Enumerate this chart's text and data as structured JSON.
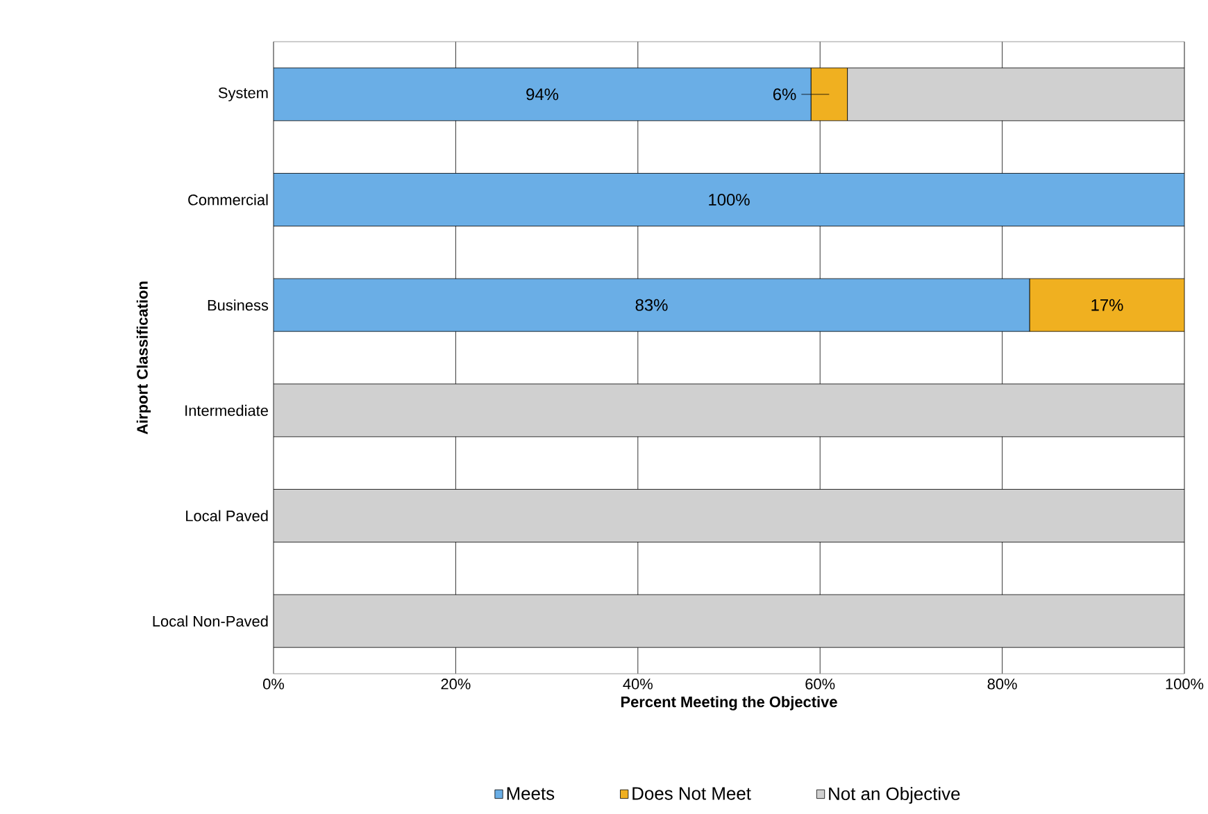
{
  "chart_data": {
    "type": "bar",
    "orientation": "horizontal",
    "stacked": true,
    "xlabel": "Percent Meeting the Objective",
    "ylabel": "Airport Classification",
    "categories": [
      "System",
      "Commercial",
      "Business",
      "Intermediate",
      "Local Paved",
      "Local Non-Paved"
    ],
    "series": [
      {
        "name": "Meets",
        "color": "#6aaee6",
        "values": [
          59,
          100,
          83,
          0,
          0,
          0
        ],
        "value_labels": [
          null,
          "100%",
          "83%",
          null,
          null,
          null
        ]
      },
      {
        "name": "Does Not Meet",
        "color": "#f0b020",
        "values": [
          4,
          0,
          17,
          0,
          0,
          0
        ],
        "value_labels": [
          null,
          null,
          "17%",
          null,
          null,
          null
        ]
      },
      {
        "name": "Not an Objective",
        "color": "#d0d0d0",
        "values": [
          37,
          0,
          0,
          100,
          100,
          100
        ],
        "value_labels": [
          null,
          null,
          null,
          null,
          null,
          null
        ]
      }
    ],
    "annotations": [
      "94%",
      "6%"
    ],
    "xlim": [
      0,
      100
    ],
    "xticks": [
      {
        "value": 0,
        "label": "0%"
      },
      {
        "value": 20,
        "label": "20%"
      },
      {
        "value": 40,
        "label": "40%"
      },
      {
        "value": 60,
        "label": "60%"
      },
      {
        "value": 80,
        "label": "80%"
      },
      {
        "value": 100,
        "label": "100%"
      }
    ],
    "grid": "x",
    "legend": "bottom"
  }
}
